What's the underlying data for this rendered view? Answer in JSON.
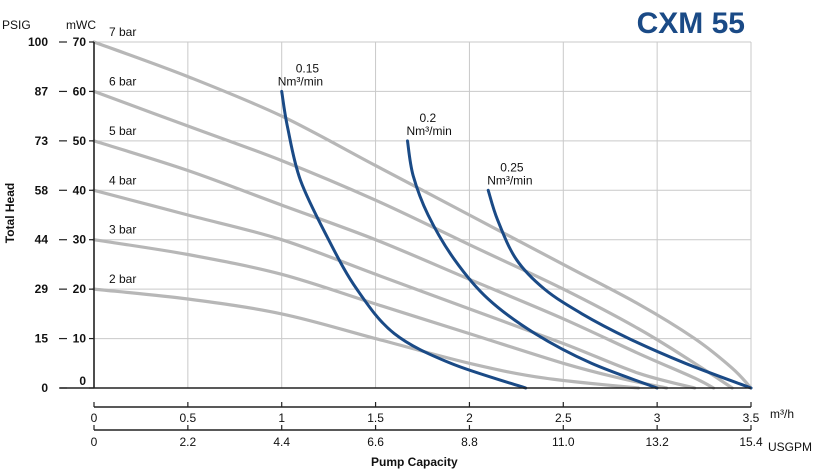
{
  "chart_data": {
    "type": "line",
    "title": "CXM 55",
    "ylabel": "Total Head",
    "xlabel": "Pump Capacity",
    "y_units": [
      "PSIG",
      "mWC"
    ],
    "x_units_primary": "m³/h",
    "x_units_secondary": "USGPM",
    "xlim": [
      0,
      3.5
    ],
    "ylim": [
      0,
      70
    ],
    "grid": true,
    "x_ticks_m3h": [
      "0",
      "0.5",
      "1",
      "1.5",
      "2",
      "2.5",
      "3",
      "3.5"
    ],
    "x_ticks_usgpm": [
      "0",
      "2.2",
      "4.4",
      "6.6",
      "8.8",
      "11.0",
      "13.2",
      "15.4"
    ],
    "y_ticks_mwc": [
      "0",
      "10",
      "20",
      "30",
      "40",
      "50",
      "60",
      "70"
    ],
    "y_ticks_psig": [
      "0",
      "15",
      "29",
      "44",
      "58",
      "73",
      "87",
      "100"
    ],
    "pressure_series": [
      {
        "name": "7 bar",
        "x": [
          0,
          0.5,
          1,
          1.5,
          2,
          2.5,
          2.9,
          3.2,
          3.4,
          3.5
        ],
        "y": [
          70,
          63,
          55,
          45,
          35,
          25,
          17,
          10,
          4,
          0
        ]
      },
      {
        "name": "6 bar",
        "x": [
          0,
          0.5,
          1,
          1.5,
          2,
          2.5,
          2.9,
          3.2,
          3.4
        ],
        "y": [
          60,
          53,
          46,
          38,
          29,
          20,
          12,
          5,
          0
        ]
      },
      {
        "name": "5 bar",
        "x": [
          0,
          0.5,
          1,
          1.5,
          2,
          2.5,
          2.9,
          3.2,
          3.3
        ],
        "y": [
          50,
          44,
          37,
          30,
          22,
          14,
          7,
          2,
          0
        ]
      },
      {
        "name": "4 bar",
        "x": [
          0,
          0.5,
          1,
          1.5,
          2,
          2.5,
          2.9,
          3.2
        ],
        "y": [
          40,
          35,
          30,
          23,
          16,
          9,
          3,
          0
        ]
      },
      {
        "name": "3 bar",
        "x": [
          0,
          0.5,
          1,
          1.5,
          2,
          2.5,
          2.8,
          3.05
        ],
        "y": [
          30,
          27,
          23,
          17,
          11,
          5,
          2,
          0
        ]
      },
      {
        "name": "2 bar",
        "x": [
          0,
          0.5,
          1,
          1.5,
          2,
          2.4,
          2.9
        ],
        "y": [
          20,
          18,
          15,
          10,
          5,
          2,
          0
        ]
      }
    ],
    "air_series": [
      {
        "name_top": "0.15",
        "name_unit": "Nm³/min",
        "x": [
          1.0,
          1.03,
          1.1,
          1.25,
          1.4,
          1.6,
          1.9,
          2.3
        ],
        "y": [
          60,
          53,
          42,
          30,
          20,
          11,
          5,
          0
        ]
      },
      {
        "name_top": "0.2",
        "name_unit": "Nm³/min",
        "x": [
          1.67,
          1.7,
          1.78,
          1.92,
          2.1,
          2.35,
          2.65,
          3.0
        ],
        "y": [
          50,
          43,
          35,
          26,
          18,
          11,
          5,
          0
        ]
      },
      {
        "name_top": "0.25",
        "name_unit": "Nm³/min",
        "x": [
          2.1,
          2.15,
          2.25,
          2.4,
          2.6,
          2.85,
          3.15,
          3.5
        ],
        "y": [
          40,
          34,
          26,
          20,
          15,
          10,
          5,
          0
        ]
      }
    ]
  }
}
